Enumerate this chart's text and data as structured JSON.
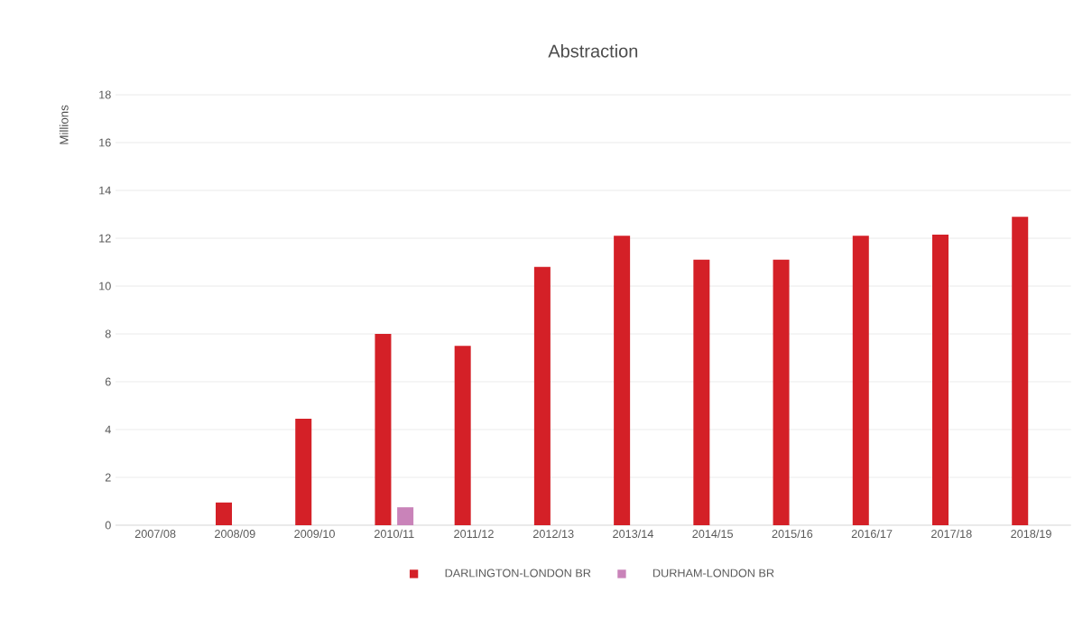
{
  "chart_data": {
    "type": "bar",
    "title": "Abstraction",
    "ylabel": "Millions",
    "categories": [
      "2007/08",
      "2008/09",
      "2009/10",
      "2010/11",
      "2011/12",
      "2012/13",
      "2013/14",
      "2014/15",
      "2015/16",
      "2016/17",
      "2017/18",
      "2018/19"
    ],
    "series": [
      {
        "name": "DARLINGTON-LONDON BR",
        "color": "#d42027",
        "values": [
          null,
          0.95,
          4.45,
          8.0,
          7.5,
          10.8,
          12.1,
          11.1,
          11.1,
          12.1,
          12.15,
          12.9
        ]
      },
      {
        "name": "DURHAM-LONDON BR",
        "color": "#c983b9",
        "values": [
          null,
          null,
          null,
          0.75,
          null,
          null,
          null,
          null,
          null,
          null,
          null,
          null
        ]
      }
    ],
    "ylim": [
      0,
      18
    ],
    "yticks": [
      0,
      2,
      4,
      6,
      8,
      10,
      12,
      14,
      16,
      18
    ],
    "grid": "y",
    "legend": "bottom"
  }
}
